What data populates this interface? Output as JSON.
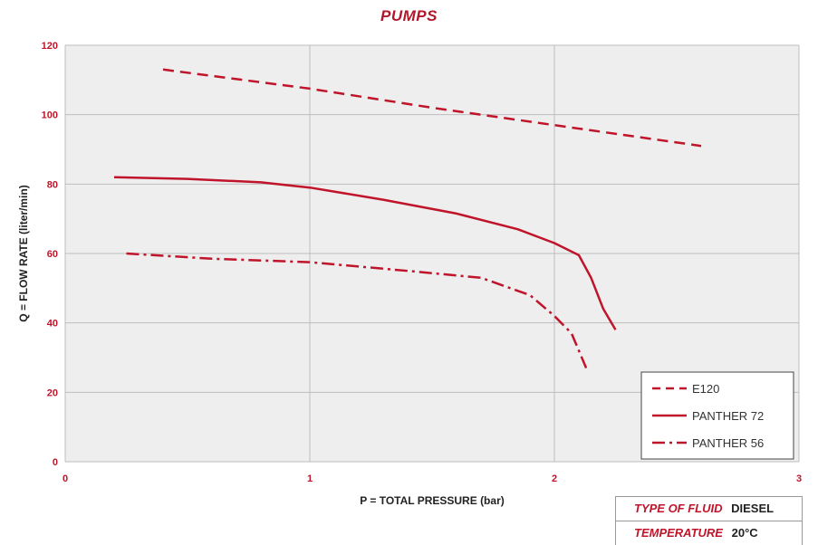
{
  "chart_data": {
    "type": "line",
    "title": "PUMPS",
    "xlabel": "P = TOTAL PRESSURE (bar)",
    "ylabel": "Q = FLOW RATE (liter/min)",
    "xlim": [
      0,
      3
    ],
    "ylim": [
      0,
      120
    ],
    "x_ticks": [
      "0",
      "1",
      "2",
      "3"
    ],
    "y_ticks": [
      "0",
      "20",
      "40",
      "60",
      "80",
      "100",
      "120"
    ],
    "grid": true,
    "legend_position": "bottom-right",
    "series": [
      {
        "name": "E120",
        "style": "dashed",
        "color": "#c0142a",
        "points": [
          [
            0.4,
            113
          ],
          [
            1.0,
            107.5
          ],
          [
            1.5,
            102
          ],
          [
            2.0,
            97
          ],
          [
            2.6,
            91
          ]
        ]
      },
      {
        "name": "PANTHER 72",
        "style": "solid",
        "color": "#c0142a",
        "points": [
          [
            0.2,
            82
          ],
          [
            0.5,
            81.5
          ],
          [
            0.8,
            80.5
          ],
          [
            1.0,
            79
          ],
          [
            1.3,
            75.5
          ],
          [
            1.6,
            71.5
          ],
          [
            1.85,
            67
          ],
          [
            2.0,
            63
          ],
          [
            2.1,
            59.5
          ],
          [
            2.15,
            53
          ],
          [
            2.2,
            44
          ],
          [
            2.25,
            38
          ]
        ]
      },
      {
        "name": "PANTHER 56",
        "style": "dash-dot",
        "color": "#c0142a",
        "points": [
          [
            0.25,
            60
          ],
          [
            0.6,
            58.5
          ],
          [
            1.0,
            57.5
          ],
          [
            1.4,
            55
          ],
          [
            1.7,
            53
          ],
          [
            1.9,
            48
          ],
          [
            2.0,
            42
          ],
          [
            2.07,
            37
          ],
          [
            2.13,
            27
          ]
        ]
      }
    ]
  },
  "info": {
    "rows": [
      {
        "label": "TYPE OF FLUID",
        "value": "DIESEL"
      },
      {
        "label": "TEMPERATURE",
        "value": "20°C"
      }
    ]
  }
}
